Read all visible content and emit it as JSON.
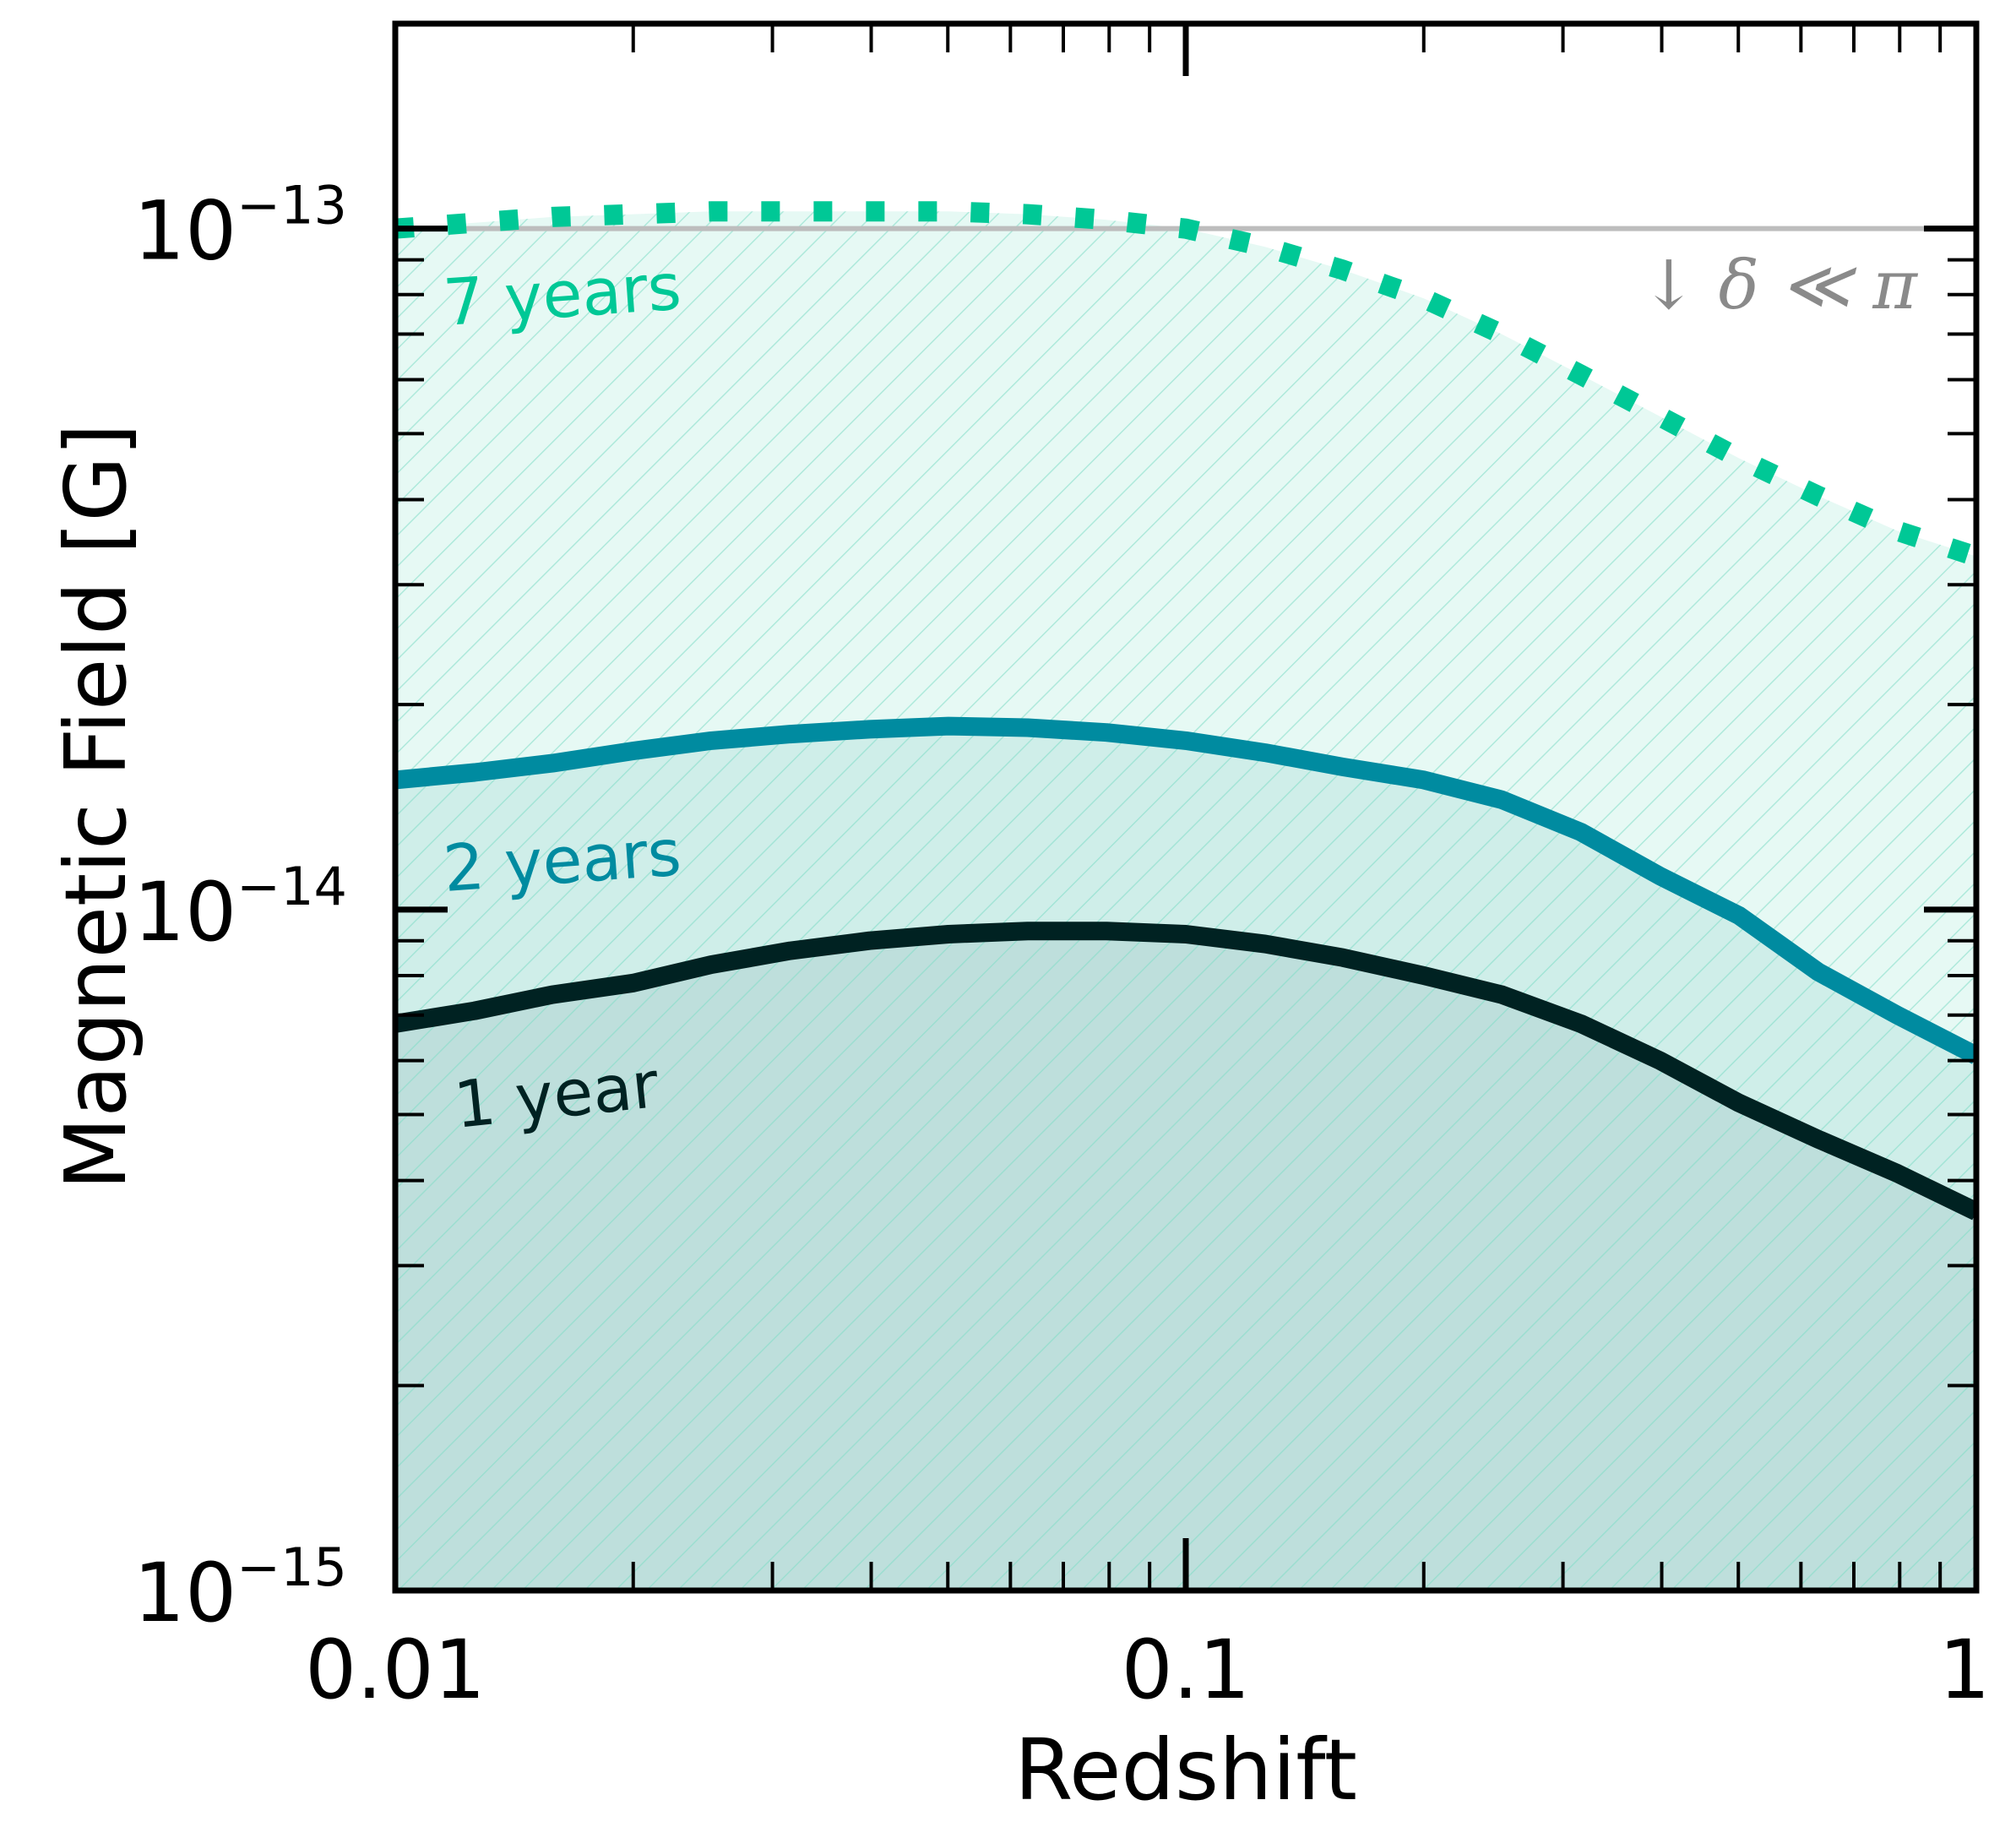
{
  "chart_data": {
    "type": "line",
    "xlabel": "Redshift",
    "ylabel": "Magnetic Field [G]",
    "x_scale": "log",
    "y_scale": "log",
    "xlim": [
      0.01,
      1
    ],
    "ylim": [
      1e-15,
      2e-13
    ],
    "x_ticks": [
      {
        "value": 0.01,
        "label": "0.01"
      },
      {
        "value": 0.1,
        "label": "0.1"
      },
      {
        "value": 1,
        "label": "1"
      }
    ],
    "y_ticks": [
      {
        "value": 1e-15,
        "base": "10",
        "exp": "−15"
      },
      {
        "value": 1e-14,
        "base": "10",
        "exp": "−14"
      },
      {
        "value": 1e-13,
        "base": "10",
        "exp": "−13"
      }
    ],
    "reference_line": {
      "y": 1e-13,
      "label": "↓ δ ≪ π",
      "color": "#bdbdbd"
    },
    "series": [
      {
        "label": "7 years",
        "color": "#00c896",
        "style": "dotted",
        "fill": "#c8f2e6",
        "x": [
          0.01,
          0.0126,
          0.0158,
          0.02,
          0.0251,
          0.0316,
          0.0398,
          0.0501,
          0.0631,
          0.0794,
          0.1,
          0.126,
          0.158,
          0.2,
          0.251,
          0.316,
          0.398,
          0.501,
          0.631,
          0.794,
          1.0
        ],
        "y": [
          1e-13,
          1.02e-13,
          1.04e-13,
          1.05e-13,
          1.06e-13,
          1.06e-13,
          1.06e-13,
          1.06e-13,
          1.05e-13,
          1.03e-13,
          1e-13,
          9.4e-14,
          8.7e-14,
          7.9e-14,
          7e-14,
          6.1e-14,
          5.3e-14,
          4.6e-14,
          4.05e-14,
          3.6e-14,
          3.3e-14
        ]
      },
      {
        "label": "2 years",
        "color": "#008ba0",
        "style": "solid",
        "fill": "#b4e0dc",
        "x": [
          0.01,
          0.0126,
          0.0158,
          0.02,
          0.0251,
          0.0316,
          0.0398,
          0.0501,
          0.0631,
          0.0794,
          0.1,
          0.126,
          0.158,
          0.2,
          0.251,
          0.316,
          0.398,
          0.501,
          0.631,
          0.794,
          1.0
        ],
        "y": [
          1.55e-14,
          1.59e-14,
          1.64e-14,
          1.71e-14,
          1.77e-14,
          1.81e-14,
          1.84e-14,
          1.86e-14,
          1.85e-14,
          1.82e-14,
          1.77e-14,
          1.7e-14,
          1.62e-14,
          1.55e-14,
          1.45e-14,
          1.3e-14,
          1.12e-14,
          9.8e-15,
          8.1e-15,
          7e-15,
          6.1e-15
        ]
      },
      {
        "label": "1 year",
        "color": "#002222",
        "style": "solid",
        "fill": "#a8cccc",
        "x": [
          0.01,
          0.0126,
          0.0158,
          0.02,
          0.0251,
          0.0316,
          0.0398,
          0.0501,
          0.0631,
          0.0794,
          0.1,
          0.126,
          0.158,
          0.2,
          0.251,
          0.316,
          0.398,
          0.501,
          0.631,
          0.794,
          1.0
        ],
        "y": [
          6.8e-15,
          7.1e-15,
          7.5e-15,
          7.8e-15,
          8.3e-15,
          8.7e-15,
          9e-15,
          9.2e-15,
          9.3e-15,
          9.3e-15,
          9.2e-15,
          8.9e-15,
          8.5e-15,
          8e-15,
          7.5e-15,
          6.8e-15,
          6e-15,
          5.2e-15,
          4.6e-15,
          4.1e-15,
          3.6e-15
        ]
      }
    ]
  }
}
